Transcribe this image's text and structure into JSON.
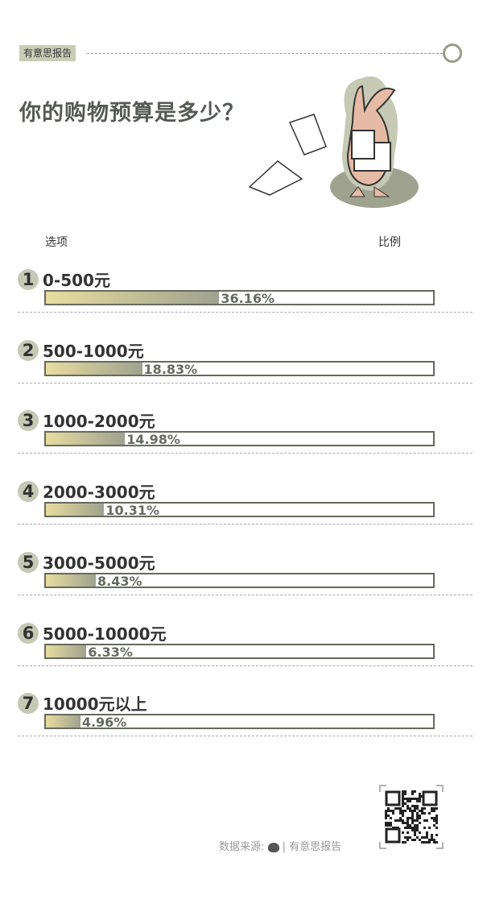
{
  "header": {
    "brand": "有意思报告",
    "title": "你的购物预算是多少？"
  },
  "table": {
    "col_option": "选项",
    "col_ratio": "比例"
  },
  "chart_data": {
    "type": "bar",
    "categories": [
      "0-500元",
      "500-1000元",
      "1000-2000元",
      "2000-3000元",
      "3000-5000元",
      "5000-10000元",
      "10000元以上"
    ],
    "values": [
      36.16,
      18.83,
      14.98,
      10.31,
      8.43,
      6.33,
      4.96
    ],
    "labels": [
      "36.16%",
      "18.83%",
      "14.98%",
      "10.31%",
      "8.43%",
      "6.33%",
      "4.96%"
    ],
    "numbers": [
      "1",
      "2",
      "3",
      "4",
      "5",
      "6",
      "7"
    ],
    "colors": {
      "fill_start": "#e8dc9f",
      "fill_end": "#9ea28f",
      "border": "#666a5e"
    }
  },
  "footer": {
    "source_label": "数据来源:",
    "source_name": "| 有意思报告"
  }
}
